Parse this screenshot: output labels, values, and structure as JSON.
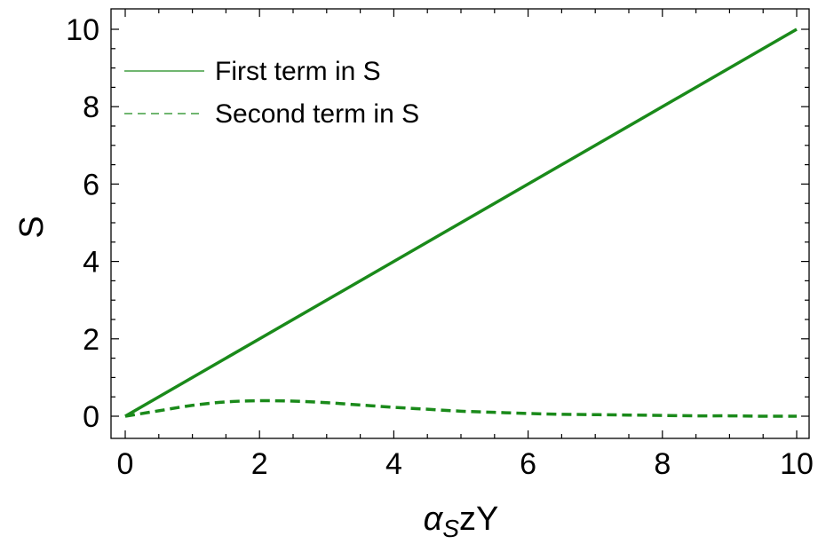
{
  "chart_data": {
    "type": "line",
    "xlabel": {
      "main": "α",
      "sub": "S",
      "rest": "zY"
    },
    "ylabel": "S",
    "xlim": [
      0,
      10
    ],
    "ylim": [
      0,
      10
    ],
    "xticks": [
      0,
      2,
      4,
      6,
      8,
      10
    ],
    "yticks": [
      0,
      2,
      4,
      6,
      8,
      10
    ],
    "grid": false,
    "legend_position": "top-left",
    "series": [
      {
        "name": "First term in S",
        "style": "solid",
        "color": "#1a8a1a",
        "x": [
          0,
          10
        ],
        "y": [
          0,
          10
        ]
      },
      {
        "name": "Second term in S",
        "style": "dashed",
        "color": "#1a8a1a",
        "x": [
          0,
          0.5,
          1,
          1.5,
          2,
          2.5,
          3,
          3.5,
          4,
          4.5,
          5,
          5.5,
          6,
          6.5,
          7,
          7.5,
          8,
          8.5,
          9,
          9.5,
          10
        ],
        "y": [
          0,
          0.14,
          0.28,
          0.37,
          0.4,
          0.39,
          0.35,
          0.29,
          0.23,
          0.18,
          0.13,
          0.1,
          0.07,
          0.05,
          0.04,
          0.03,
          0.02,
          0.01,
          0.01,
          0.0,
          0.0
        ]
      }
    ]
  }
}
